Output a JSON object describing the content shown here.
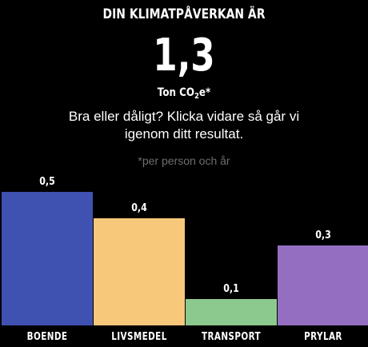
{
  "header": {
    "title": "DIN KLIMATPÅVERKAN ÄR",
    "value": "1,3",
    "unit_prefix": "Ton CO",
    "unit_sub": "2",
    "unit_suffix": "e*"
  },
  "message": "Bra eller dåligt? Klicka vidare så går vi igenom ditt resultat.",
  "footnote": "*per person och år",
  "chart_data": {
    "type": "bar",
    "categories": [
      "BOENDE",
      "LIVSMEDEL",
      "TRANSPORT",
      "PRYLAR"
    ],
    "values": [
      0.5,
      0.4,
      0.1,
      0.3
    ],
    "value_labels": [
      "0,5",
      "0,4",
      "0,1",
      "0,3"
    ],
    "colors": [
      "#3f52b2",
      "#f7c87a",
      "#8cc98e",
      "#946fc1"
    ],
    "ylim": [
      0,
      0.5
    ]
  },
  "colors": {
    "accent": "#f7c87a",
    "background": "#000000",
    "text": "#ffffff",
    "muted": "#6e6e6e"
  }
}
